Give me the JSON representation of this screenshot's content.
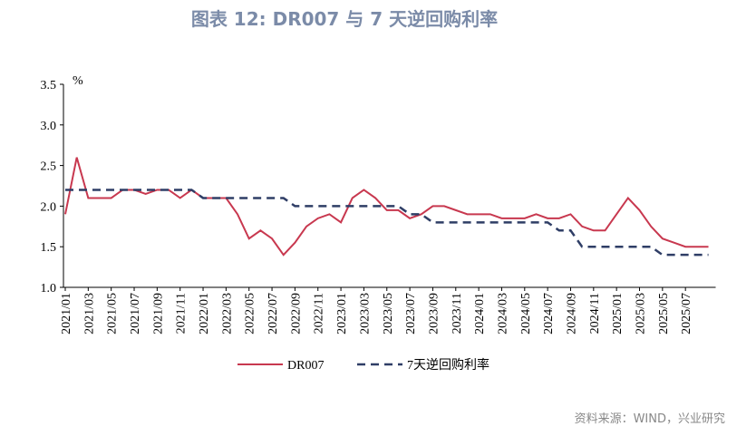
{
  "chart_data": {
    "type": "line",
    "title": "图表 12: DR007 与 7 天逆回购利率",
    "y_unit": "%",
    "source": "资料来源：WIND，兴业研究",
    "categories": [
      "2021/01",
      null,
      "2021/03",
      null,
      "2021/05",
      null,
      "2021/07",
      null,
      "2021/09",
      null,
      "2021/11",
      null,
      "2022/01",
      null,
      "2022/03",
      null,
      "2022/05",
      null,
      "2022/07",
      null,
      "2022/09",
      null,
      "2022/11",
      null,
      "2023/01",
      null,
      "2023/03",
      null,
      "2023/05",
      null,
      "2023/07",
      null,
      "2023/09",
      null,
      "2023/11",
      null,
      "2024/01",
      null,
      "2024/03",
      null,
      "2024/05",
      null,
      "2024/07",
      null,
      "2024/09",
      null,
      "2024/11",
      null,
      "2025/01",
      null,
      "2025/03",
      null,
      "2025/05",
      null,
      "2025/07",
      null,
      null
    ],
    "series": [
      {
        "name": "DR007",
        "color": "#c8384f",
        "dash": false,
        "values": [
          1.9,
          2.6,
          2.1,
          2.1,
          2.1,
          2.2,
          2.2,
          2.15,
          2.2,
          2.2,
          2.1,
          2.2,
          2.1,
          2.1,
          2.1,
          1.9,
          1.6,
          1.7,
          1.6,
          1.4,
          1.55,
          1.75,
          1.85,
          1.9,
          1.8,
          2.1,
          2.2,
          2.1,
          1.95,
          1.95,
          1.85,
          1.9,
          2.0,
          2.0,
          1.95,
          1.9,
          1.9,
          1.9,
          1.85,
          1.85,
          1.85,
          1.9,
          1.85,
          1.85,
          1.9,
          1.75,
          1.7,
          1.7,
          1.9,
          2.1,
          1.95,
          1.75,
          1.6,
          1.55,
          1.5,
          1.5,
          1.5
        ]
      },
      {
        "name": "7天逆回购利率",
        "color": "#2f3e66",
        "dash": true,
        "values": [
          2.2,
          2.2,
          2.2,
          2.2,
          2.2,
          2.2,
          2.2,
          2.2,
          2.2,
          2.2,
          2.2,
          2.2,
          2.1,
          2.1,
          2.1,
          2.1,
          2.1,
          2.1,
          2.1,
          2.1,
          2.0,
          2.0,
          2.0,
          2.0,
          2.0,
          2.0,
          2.0,
          2.0,
          2.0,
          2.0,
          1.9,
          1.9,
          1.8,
          1.8,
          1.8,
          1.8,
          1.8,
          1.8,
          1.8,
          1.8,
          1.8,
          1.8,
          1.8,
          1.7,
          1.7,
          1.5,
          1.5,
          1.5,
          1.5,
          1.5,
          1.5,
          1.5,
          1.4,
          1.4,
          1.4,
          1.4,
          1.4
        ]
      }
    ],
    "ylim": [
      1.0,
      3.5
    ],
    "yticks": [
      {
        "value": 1.0,
        "label": "1.0"
      },
      1.5,
      {
        "value": 2.0,
        "label": "2.0"
      },
      2.5,
      {
        "value": 3.0,
        "label": "3.0"
      },
      3.5
    ],
    "grid": false,
    "legend": "bottom"
  }
}
